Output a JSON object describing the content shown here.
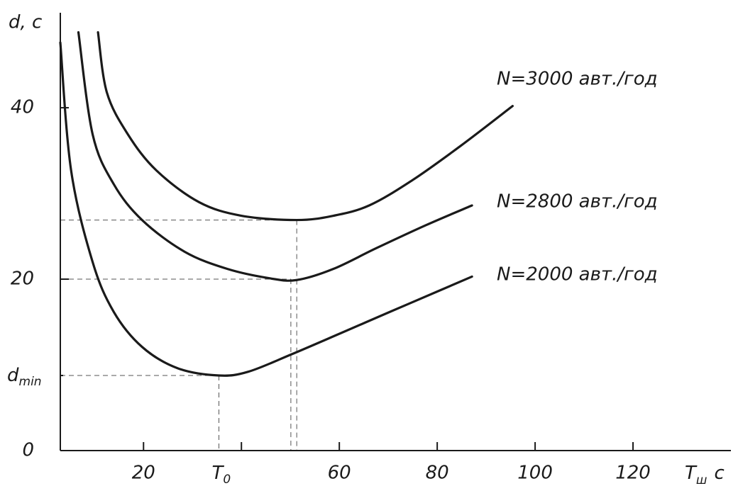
{
  "chart_data": {
    "type": "line",
    "ylabel": "d, c",
    "xlabel": {
      "text": "T",
      "subscript": "ш",
      "unit": "c"
    },
    "xlim": [
      3,
      140
    ],
    "ylim": [
      0,
      51
    ],
    "xticks": [
      20,
      {
        "value": 35.4,
        "label": "T",
        "subscript": "0"
      },
      {
        "value": 40,
        "label": null
      },
      60,
      80,
      100,
      120
    ],
    "yticks": [
      0,
      {
        "value": 8.76,
        "label": "d",
        "subscript": "min"
      },
      20,
      40
    ],
    "color": "#1a1a1a",
    "series": [
      {
        "name": "N=3000 авт./год",
        "x": [
          10.7,
          12.5,
          16.8,
          22.6,
          31.3,
          40,
          51.3,
          58.8,
          66.1,
          74.8,
          84.9,
          95.4
        ],
        "values": [
          48.8,
          41.8,
          36.9,
          32.7,
          29.0,
          27.4,
          26.9,
          27.4,
          28.6,
          31.5,
          35.6,
          40.2
        ]
      },
      {
        "name": "N=2800 авт./год",
        "x": [
          6.7,
          9.6,
          13.9,
          19.7,
          28.4,
          37.1,
          45.8,
          51.3,
          58.8,
          67.5,
          77.7,
          87.1
        ],
        "values": [
          48.8,
          36.9,
          31.1,
          26.9,
          23.2,
          21.2,
          20.1,
          19.9,
          21.2,
          23.6,
          26.3,
          28.6
        ]
      },
      {
        "name": "N=2000 авт./год",
        "x": [
          3.0,
          5.2,
          9.6,
          13.9,
          19.7,
          27.0,
          35.4,
          41.4,
          50.1,
          60.3,
          70.4,
          80.6,
          87.1
        ],
        "values": [
          47.6,
          32.7,
          22.0,
          16.2,
          12.1,
          9.6,
          8.76,
          9.2,
          11.2,
          13.7,
          16.2,
          18.7,
          20.3
        ]
      }
    ],
    "guides": [
      {
        "x": 35.4,
        "y": 8.76
      },
      {
        "x": 50.1,
        "y": 20
      },
      {
        "x": 51.3,
        "y": 26.9
      }
    ]
  }
}
